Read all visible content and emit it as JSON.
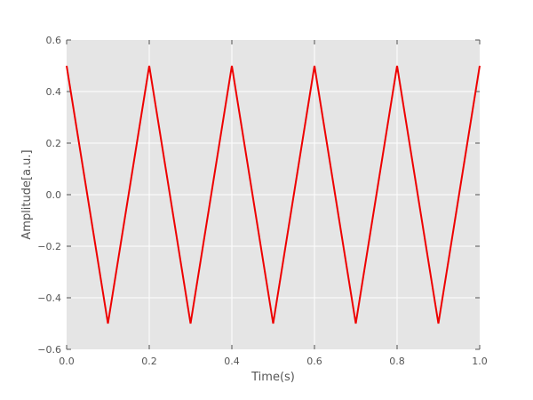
{
  "chart_data": {
    "type": "line",
    "title": "",
    "xlabel": "Time(s)",
    "ylabel": "Amplitude[a.u.]",
    "xlim": [
      0.0,
      1.0
    ],
    "ylim": [
      -0.6,
      0.6
    ],
    "xticks": [
      0.0,
      0.2,
      0.4,
      0.6,
      0.8,
      1.0
    ],
    "xtick_labels": [
      "0.0",
      "0.2",
      "0.4",
      "0.6",
      "0.8",
      "1.0"
    ],
    "yticks": [
      -0.6,
      -0.4,
      -0.2,
      0.0,
      0.2,
      0.4,
      0.6
    ],
    "ytick_labels": [
      "−0.6",
      "−0.4",
      "−0.2",
      "0.0",
      "0.2",
      "0.4",
      "0.6"
    ],
    "grid": true,
    "background_color": "#e5e5e5",
    "grid_color": "#ffffff",
    "series": [
      {
        "color": "#ee0000",
        "x": [
          0.0,
          0.1,
          0.2,
          0.3,
          0.4,
          0.5,
          0.6,
          0.7,
          0.8,
          0.9,
          1.0
        ],
        "y": [
          0.5,
          -0.5,
          0.5,
          -0.5,
          0.5,
          -0.5,
          0.5,
          -0.5,
          0.5,
          -0.5,
          0.5
        ]
      }
    ]
  }
}
